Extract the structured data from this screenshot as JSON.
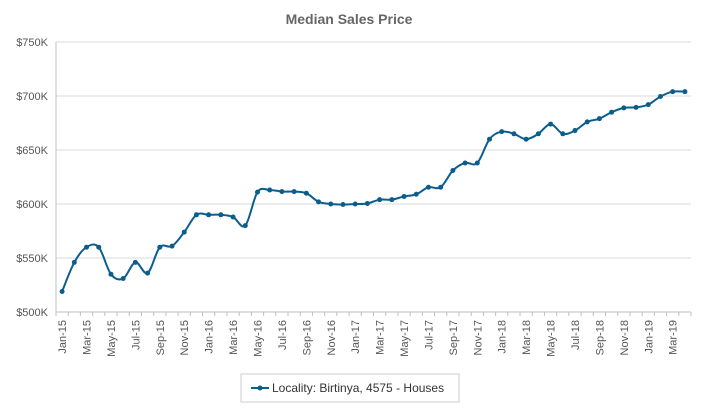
{
  "chart_data": {
    "type": "line",
    "title": "Median Sales Price",
    "xlabel": "",
    "ylabel": "",
    "ylim": [
      500000,
      750000
    ],
    "y_ticks": [
      500000,
      550000,
      600000,
      650000,
      700000,
      750000
    ],
    "y_tick_labels": [
      "$500K",
      "$550K",
      "$600K",
      "$650K",
      "$700K",
      "$750K"
    ],
    "x_tick_labels": [
      "Jan-15",
      "Mar-15",
      "May-15",
      "Jul-15",
      "Sep-15",
      "Nov-15",
      "Jan-16",
      "Mar-16",
      "May-16",
      "Jul-16",
      "Sep-16",
      "Nov-16",
      "Jan-17",
      "Mar-17",
      "May-17",
      "Jul-17",
      "Sep-17",
      "Nov-17",
      "Jan-18",
      "Mar-18",
      "May-18",
      "Jul-18",
      "Sep-18",
      "Nov-18",
      "Jan-19",
      "Mar-19"
    ],
    "grid": true,
    "legend_position": "bottom",
    "color": "#0b5e8c",
    "series": [
      {
        "name": "Locality: Birtinya, 4575 - Houses",
        "x": [
          "Jan-15",
          "Feb-15",
          "Mar-15",
          "Apr-15",
          "May-15",
          "Jun-15",
          "Jul-15",
          "Aug-15",
          "Sep-15",
          "Oct-15",
          "Nov-15",
          "Dec-15",
          "Jan-16",
          "Feb-16",
          "Mar-16",
          "Apr-16",
          "May-16",
          "Jun-16",
          "Jul-16",
          "Aug-16",
          "Sep-16",
          "Oct-16",
          "Nov-16",
          "Dec-16",
          "Jan-17",
          "Feb-17",
          "Mar-17",
          "Apr-17",
          "May-17",
          "Jun-17",
          "Jul-17",
          "Aug-17",
          "Sep-17",
          "Oct-17",
          "Nov-17",
          "Dec-17",
          "Jan-18",
          "Feb-18",
          "Mar-18",
          "Apr-18",
          "May-18",
          "Jun-18",
          "Jul-18",
          "Aug-18",
          "Sep-18",
          "Oct-18",
          "Nov-18",
          "Dec-18",
          "Jan-19",
          "Feb-19",
          "Mar-19",
          "Apr-19"
        ],
        "values": [
          519000,
          546000,
          560000,
          560000,
          535000,
          531000,
          546000,
          536000,
          560000,
          561000,
          574000,
          590000,
          590000,
          590000,
          588000,
          580000,
          611000,
          613000,
          611500,
          611500,
          610000,
          602000,
          600000,
          599500,
          600000,
          600500,
          604000,
          604000,
          607000,
          609000,
          615500,
          615500,
          631000,
          638000,
          638000,
          660000,
          667000,
          665000,
          660000,
          665000,
          674000,
          665000,
          668000,
          676000,
          679000,
          685000,
          689000,
          689500,
          692000,
          699500,
          704000,
          704000
        ]
      }
    ]
  }
}
